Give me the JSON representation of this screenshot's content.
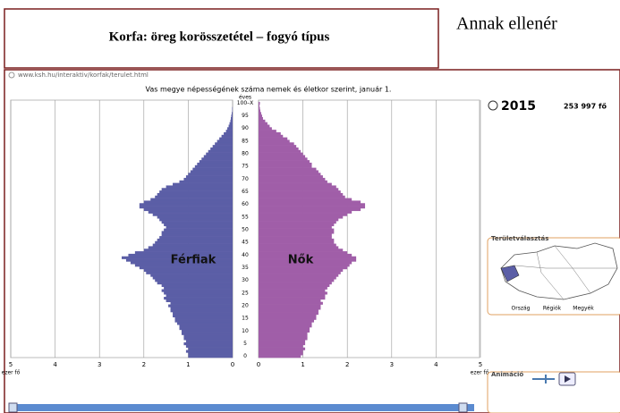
{
  "caption": "Korfa: öreg korösszetétel – fogyó típus",
  "side_text": "Annak ellenér",
  "url": "www.ksh.hu/interaktiv/korfak/terulet.html",
  "year": "2015",
  "total": "253 997 fő",
  "area_title": "Területválasztás",
  "area_options": [
    "Ország",
    "Régiók",
    "Megyék"
  ],
  "animation": "Animáció",
  "chart_data": {
    "type": "pyramid",
    "title": "Vas megye népességének száma nemek és életkor szerint, január 1.",
    "ylabel": "éves",
    "xlabel": "ezer fő",
    "categories": [
      "0",
      null,
      null,
      null,
      null,
      "5",
      null,
      null,
      null,
      null,
      "10",
      null,
      null,
      null,
      null,
      "15",
      null,
      null,
      null,
      null,
      "20",
      null,
      null,
      null,
      null,
      "25",
      null,
      null,
      null,
      null,
      "30",
      null,
      null,
      null,
      null,
      "35",
      null,
      null,
      null,
      null,
      "40",
      null,
      null,
      null,
      null,
      "45",
      null,
      null,
      null,
      null,
      "50",
      null,
      null,
      null,
      null,
      "55",
      null,
      null,
      null,
      null,
      "60",
      null,
      null,
      null,
      null,
      "65",
      null,
      null,
      null,
      null,
      "70",
      null,
      null,
      null,
      null,
      "75",
      null,
      null,
      null,
      null,
      "80",
      null,
      null,
      null,
      null,
      "85",
      null,
      null,
      null,
      null,
      "90",
      null,
      null,
      null,
      null,
      "95",
      null,
      null,
      null,
      null,
      "100–X"
    ],
    "xlim": [
      0,
      5
    ],
    "xticks": [
      0,
      1,
      2,
      3,
      4,
      5
    ],
    "grid": true,
    "series": [
      {
        "name": "Férfiak",
        "color": "#5b5ea6",
        "values": [
          1.0,
          1.0,
          1.05,
          1.0,
          1.05,
          1.1,
          1.05,
          1.1,
          1.1,
          1.15,
          1.15,
          1.2,
          1.2,
          1.25,
          1.3,
          1.3,
          1.35,
          1.35,
          1.4,
          1.4,
          1.45,
          1.4,
          1.5,
          1.55,
          1.5,
          1.55,
          1.6,
          1.55,
          1.6,
          1.7,
          1.75,
          1.8,
          1.85,
          1.95,
          2.0,
          2.1,
          2.2,
          2.3,
          2.4,
          2.5,
          2.35,
          2.2,
          2.0,
          1.9,
          1.8,
          1.75,
          1.7,
          1.65,
          1.6,
          1.6,
          1.55,
          1.5,
          1.55,
          1.6,
          1.65,
          1.7,
          1.8,
          1.9,
          2.0,
          2.1,
          2.1,
          2.0,
          1.85,
          1.75,
          1.7,
          1.65,
          1.6,
          1.5,
          1.35,
          1.2,
          1.1,
          1.05,
          1.0,
          0.95,
          0.9,
          0.85,
          0.8,
          0.75,
          0.7,
          0.65,
          0.6,
          0.55,
          0.5,
          0.45,
          0.4,
          0.35,
          0.3,
          0.25,
          0.2,
          0.15,
          0.12,
          0.09,
          0.07,
          0.05,
          0.04,
          0.03,
          0.02,
          0.01,
          0.01,
          0.0,
          0.0
        ]
      },
      {
        "name": "Nők",
        "color": "#a05ea8",
        "values": [
          0.95,
          1.0,
          1.0,
          1.05,
          1.0,
          1.05,
          1.05,
          1.1,
          1.1,
          1.1,
          1.15,
          1.15,
          1.2,
          1.2,
          1.25,
          1.3,
          1.3,
          1.35,
          1.35,
          1.4,
          1.4,
          1.45,
          1.4,
          1.5,
          1.5,
          1.55,
          1.5,
          1.55,
          1.6,
          1.65,
          1.7,
          1.75,
          1.8,
          1.85,
          1.9,
          2.0,
          2.05,
          2.1,
          2.2,
          2.2,
          2.1,
          2.0,
          1.9,
          1.8,
          1.75,
          1.7,
          1.7,
          1.65,
          1.65,
          1.7,
          1.7,
          1.65,
          1.7,
          1.75,
          1.8,
          1.9,
          2.0,
          2.1,
          2.3,
          2.4,
          2.4,
          2.3,
          2.1,
          1.95,
          1.9,
          1.85,
          1.8,
          1.75,
          1.65,
          1.55,
          1.5,
          1.45,
          1.4,
          1.35,
          1.3,
          1.2,
          1.2,
          1.15,
          1.1,
          1.05,
          1.0,
          0.95,
          0.9,
          0.85,
          0.8,
          0.7,
          0.65,
          0.55,
          0.5,
          0.4,
          0.3,
          0.25,
          0.2,
          0.15,
          0.1,
          0.08,
          0.06,
          0.04,
          0.03,
          0.02,
          0.03
        ]
      }
    ]
  }
}
